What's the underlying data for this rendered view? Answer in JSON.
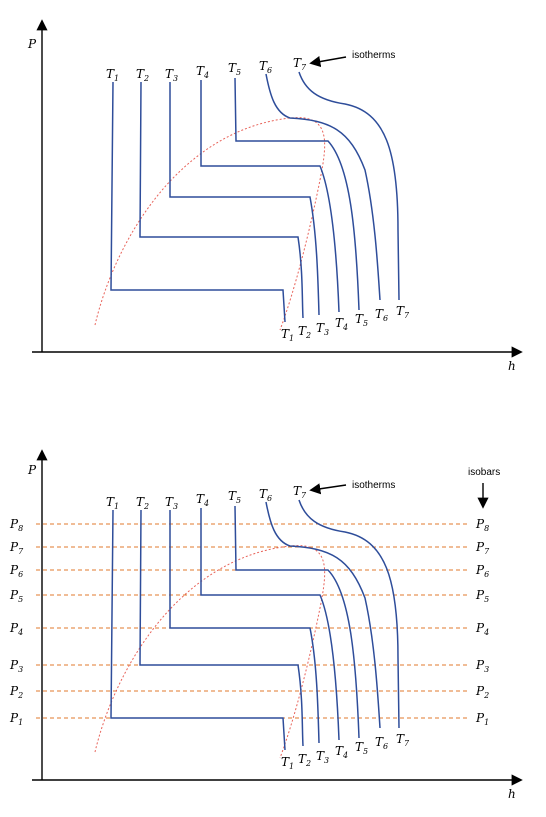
{
  "axes": {
    "y_label": "P",
    "x_label": "h"
  },
  "isotherm_note": "isotherms",
  "isobar_note": "isobars",
  "temp_labels": [
    {
      "main": "T",
      "sub": "1"
    },
    {
      "main": "T",
      "sub": "2"
    },
    {
      "main": "T",
      "sub": "3"
    },
    {
      "main": "T",
      "sub": "4"
    },
    {
      "main": "T",
      "sub": "5"
    },
    {
      "main": "T",
      "sub": "6"
    },
    {
      "main": "T",
      "sub": "7"
    }
  ],
  "pressure_labels": [
    {
      "main": "P",
      "sub": "8"
    },
    {
      "main": "P",
      "sub": "7"
    },
    {
      "main": "P",
      "sub": "6"
    },
    {
      "main": "P",
      "sub": "5"
    },
    {
      "main": "P",
      "sub": "4"
    },
    {
      "main": "P",
      "sub": "3"
    },
    {
      "main": "P",
      "sub": "2"
    },
    {
      "main": "P",
      "sub": "1"
    }
  ],
  "colors": {
    "isotherm": "#2e4d9a",
    "saturation_dome": "#e8635a",
    "isobar": "#e07a2e"
  }
}
